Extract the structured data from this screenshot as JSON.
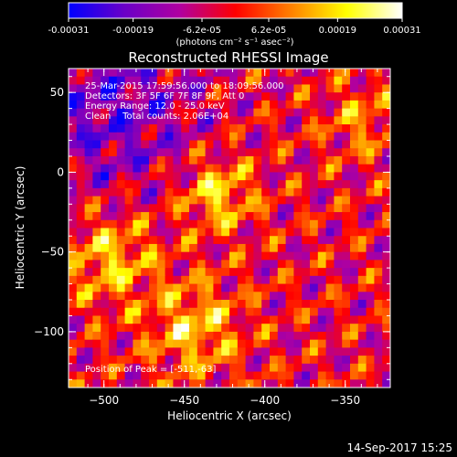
{
  "chart_data": {
    "type": "heatmap",
    "title": "Reconstructed RHESSI Image",
    "colorbar": {
      "ticks": [
        "-0.00031",
        "-0.00019",
        "-6.2e-05",
        "6.2e-05",
        "0.00019",
        "0.00031"
      ],
      "tick_values": [
        -0.00031,
        -0.00019,
        -6.2e-05,
        6.2e-05,
        0.00019,
        0.00031
      ],
      "range": [
        -0.00031,
        0.00031
      ],
      "unit_label": "(photons cm⁻² s⁻¹ asec⁻²)",
      "colors": [
        "#0000ff",
        "#6a00c8",
        "#b000a0",
        "#ff0000",
        "#ff8000",
        "#ffff00",
        "#ffffff"
      ]
    },
    "xlabel": "Heliocentric X (arcsec)",
    "ylabel": "Heliocentric Y (arcsec)",
    "xlim": [
      -522,
      -322
    ],
    "ylim": [
      -135,
      65
    ],
    "xticks": [
      -500,
      -450,
      -400,
      -350
    ],
    "xtick_labels": [
      "−500",
      "−450",
      "−400",
      "−350"
    ],
    "yticks": [
      50,
      0,
      -50,
      -100
    ],
    "ytick_labels": [
      "50",
      "0",
      "−50",
      "−100"
    ],
    "annotations": [
      "25-Mar-2015 17:59:56.000 to 18:09:56.000",
      "Detectors: 3F 5F 6F 7F 8F 9F, Att 0",
      "Energy Range: 12.0 - 25.0 keV",
      "Clean    Total counts: 2.06E+04"
    ],
    "peak_label": "Position of Peak = [-511,-63]",
    "timestamp": "14-Sep-2017 15:25",
    "grid": false
  }
}
